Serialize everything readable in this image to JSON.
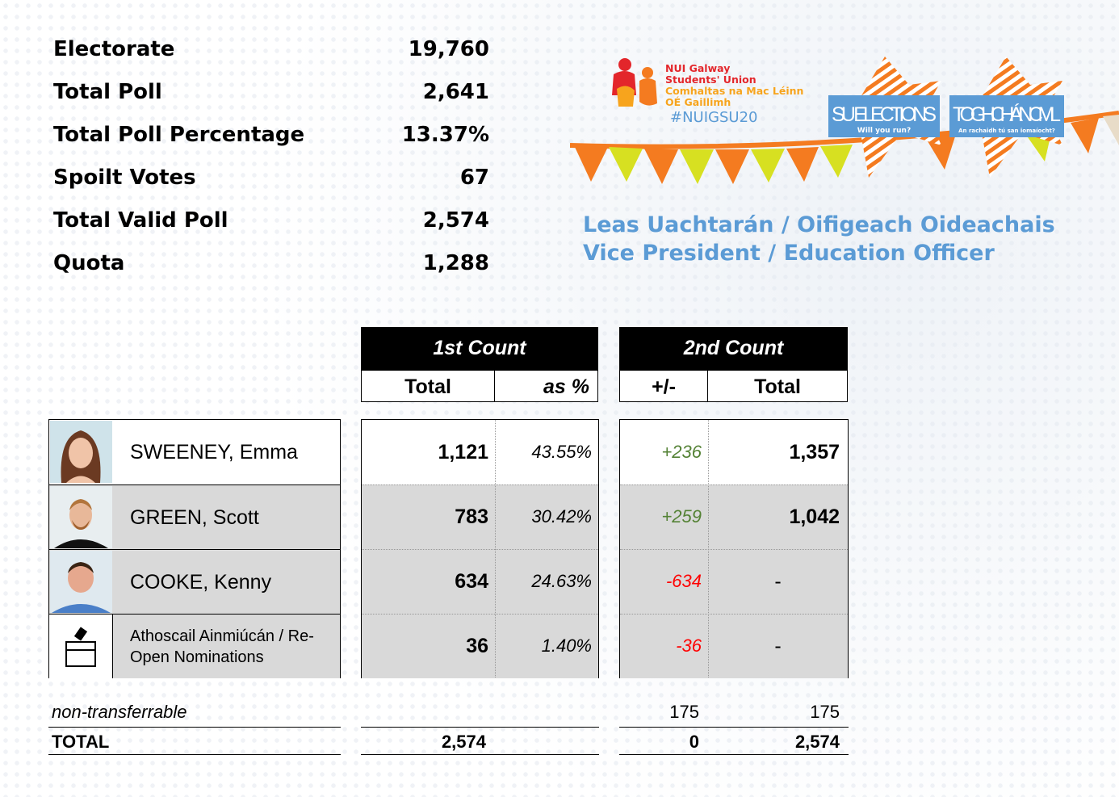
{
  "stats": [
    {
      "label": "Electorate",
      "value": "19,760"
    },
    {
      "label": "Total Poll",
      "value": "2,641"
    },
    {
      "label": "Total Poll Percentage",
      "value": "13.37%"
    },
    {
      "label": "Spoilt Votes",
      "value": "67"
    },
    {
      "label": "Total Valid Poll",
      "value": "2,574"
    },
    {
      "label": "Quota",
      "value": "1,288"
    }
  ],
  "logo": {
    "line1": "NUI Galway",
    "line2": "Students' Union",
    "line3": "Comhaltas na Mac Léinn",
    "line4": "OÉ Gaillimh",
    "hashtag": "#NUIGSU20"
  },
  "banner": {
    "sign1": "SU ELECTIONS",
    "sign1_sub": "Will you run?",
    "sign2": "TOGHCHÁIN CML",
    "sign2_sub": "An rachaidh tú san iomaíocht?"
  },
  "title": {
    "line1": "Leas Uachtarán / Oifigeach Oideachais",
    "line2": "Vice President / Education Officer"
  },
  "headers": {
    "count1": "1st Count",
    "count1_total": "Total",
    "count1_pct": "as %",
    "count2": "2nd Count",
    "count2_change": "+/-",
    "count2_total": "Total"
  },
  "candidates": [
    {
      "name": "SWEENEY, Emma",
      "total1": "1,121",
      "pct": "43.55%",
      "change": "+236",
      "total2": "1,357"
    },
    {
      "name": "GREEN, Scott",
      "total1": "783",
      "pct": "30.42%",
      "change": "+259",
      "total2": "1,042"
    },
    {
      "name": "COOKE, Kenny",
      "total1": "634",
      "pct": "24.63%",
      "change": "-634",
      "total2": "-"
    },
    {
      "name": "Athoscail Ainmiúcán / Re-Open Nominations",
      "total1": "36",
      "pct": "1.40%",
      "change": "-36",
      "total2": "-"
    }
  ],
  "footer": {
    "nontransfer_label": "non-transferrable",
    "nontransfer_change": "175",
    "nontransfer_total": "175",
    "total_label": "TOTAL",
    "total1": "2,574",
    "total_change": "0",
    "total2": "2,574"
  },
  "colors": {
    "title": "#5b9bd5",
    "positive": "#548235",
    "negative": "#ff0000",
    "shaded_row": "#d9d9d9",
    "bunting_orange": "#f47b20",
    "bunting_lime": "#d7e021"
  }
}
